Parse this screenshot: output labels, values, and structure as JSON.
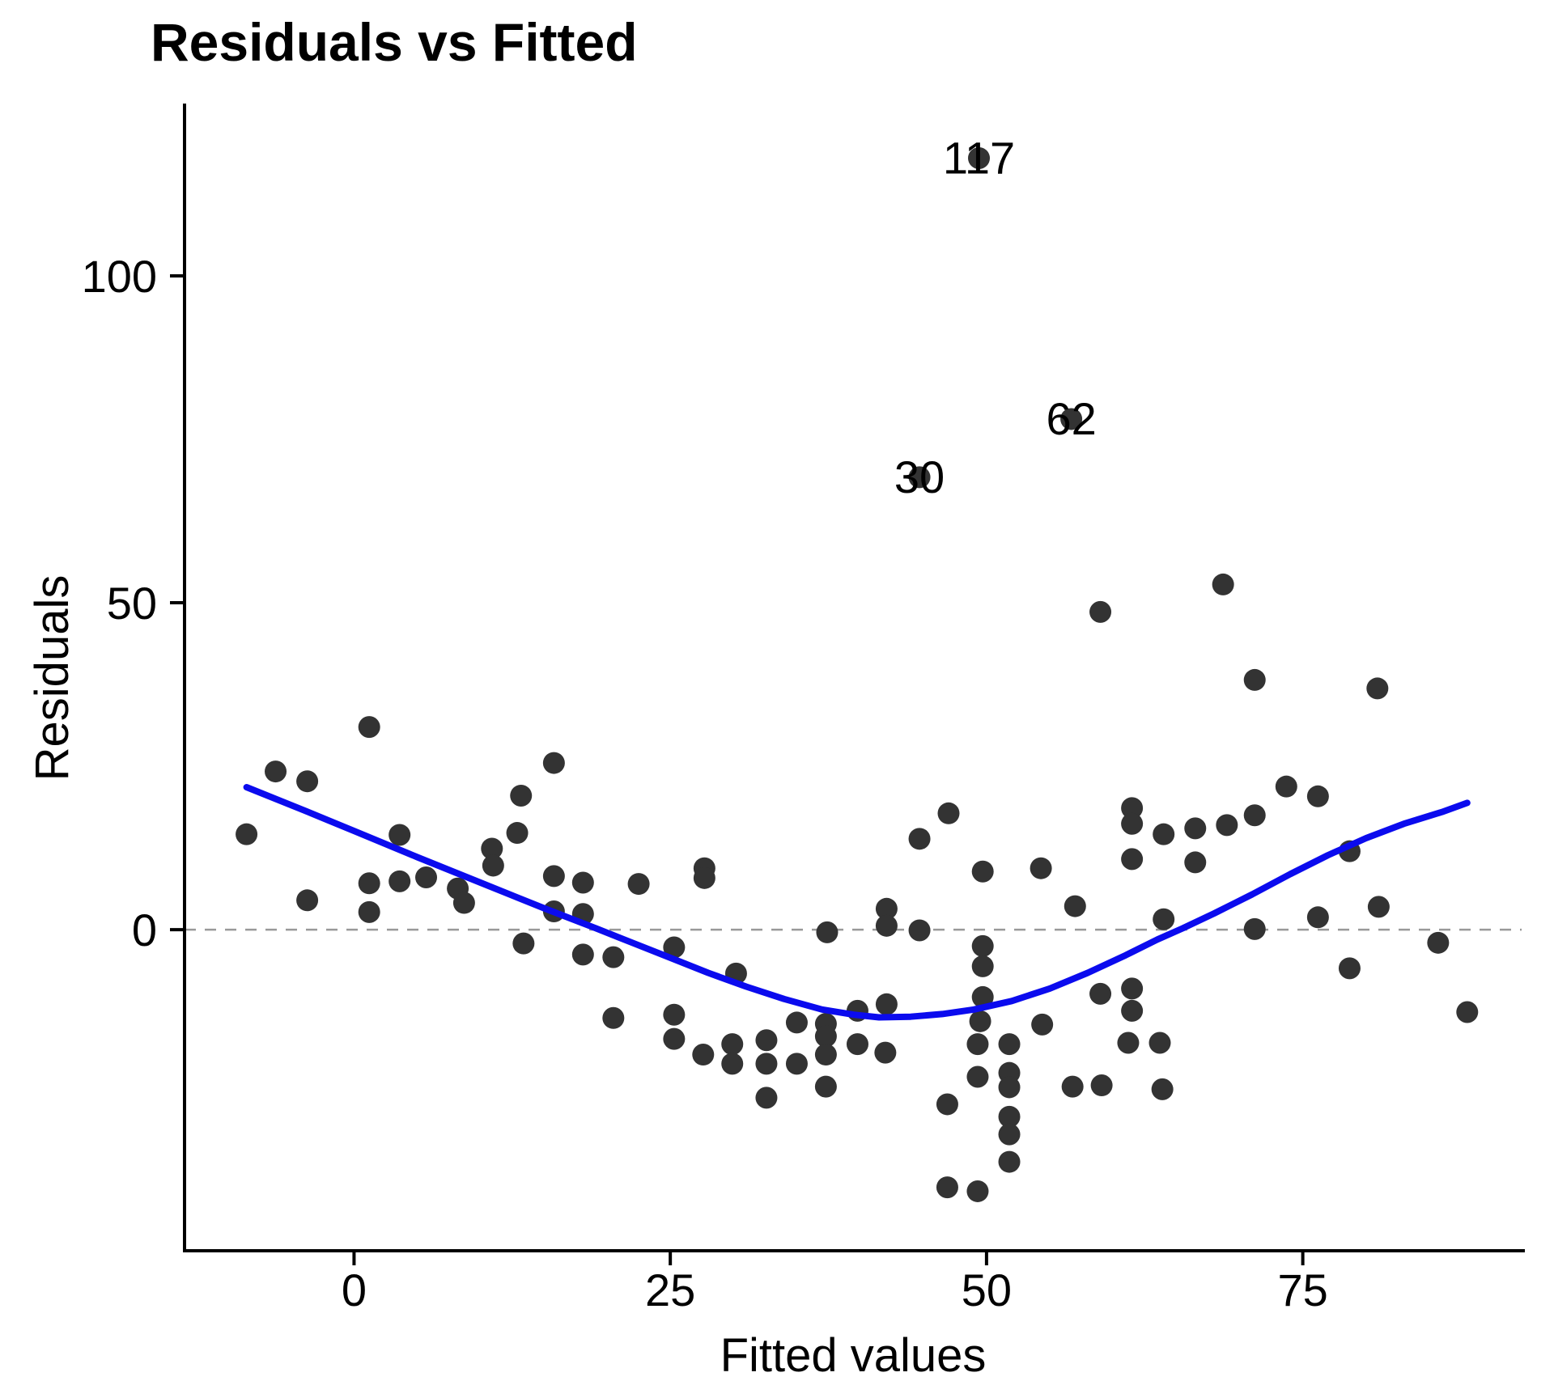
{
  "title": "Residuals vs Fitted",
  "colors": {
    "point": "#333333",
    "smooth_line": "#0b0bee",
    "zero_line": "#999999",
    "axis": "#000000",
    "text": "#000000",
    "background": "#ffffff"
  },
  "chart_data": {
    "type": "scatter",
    "title": "Residuals vs Fitted",
    "xlabel": "Fitted values",
    "ylabel": "Residuals",
    "xlim": [
      -13.4,
      92.3
    ],
    "ylim": [
      -49.1,
      126.1
    ],
    "x_ticks": [
      0,
      25,
      50,
      75
    ],
    "y_ticks": [
      0,
      50,
      100
    ],
    "grid": false,
    "zero_reference_line": 0,
    "legend": "none",
    "points": [
      [
        -8.5,
        14.6
      ],
      [
        -6.2,
        24.2
      ],
      [
        -3.7,
        22.7
      ],
      [
        -3.7,
        4.5
      ],
      [
        1.2,
        31.0
      ],
      [
        1.2,
        7.1
      ],
      [
        1.2,
        2.7
      ],
      [
        3.6,
        14.5
      ],
      [
        3.6,
        7.4
      ],
      [
        5.7,
        8.0
      ],
      [
        8.2,
        6.3
      ],
      [
        8.7,
        4.1
      ],
      [
        10.9,
        12.4
      ],
      [
        11.0,
        9.8
      ],
      [
        12.9,
        14.8
      ],
      [
        13.2,
        20.5
      ],
      [
        13.4,
        -2.1
      ],
      [
        15.8,
        25.5
      ],
      [
        15.8,
        8.2
      ],
      [
        15.8,
        2.8
      ],
      [
        18.1,
        7.2
      ],
      [
        18.1,
        2.4
      ],
      [
        18.1,
        -3.8
      ],
      [
        20.5,
        -4.2
      ],
      [
        20.5,
        -13.5
      ],
      [
        22.5,
        7.0
      ],
      [
        25.3,
        -2.7
      ],
      [
        25.3,
        -13.0
      ],
      [
        25.3,
        -16.7
      ],
      [
        27.7,
        9.4
      ],
      [
        27.7,
        7.9
      ],
      [
        27.6,
        -19.1
      ],
      [
        29.9,
        -17.5
      ],
      [
        29.9,
        -20.5
      ],
      [
        30.2,
        -6.7
      ],
      [
        32.6,
        -16.9
      ],
      [
        32.6,
        -20.5
      ],
      [
        32.6,
        -25.7
      ],
      [
        35.0,
        -14.2
      ],
      [
        35.0,
        -20.5
      ],
      [
        37.4,
        -0.4
      ],
      [
        37.3,
        -14.4
      ],
      [
        37.3,
        -16.3
      ],
      [
        37.3,
        -19.1
      ],
      [
        37.3,
        -24.0
      ],
      [
        39.8,
        -12.4
      ],
      [
        39.8,
        -17.5
      ],
      [
        42.1,
        3.2
      ],
      [
        42.1,
        0.6
      ],
      [
        42.1,
        -11.4
      ],
      [
        42.0,
        -18.8
      ],
      [
        44.7,
        69.2
      ],
      [
        44.7,
        13.9
      ],
      [
        44.7,
        -0.1
      ],
      [
        47.0,
        17.8
      ],
      [
        46.9,
        -26.7
      ],
      [
        46.9,
        -39.4
      ],
      [
        49.4,
        118.0
      ],
      [
        49.7,
        8.9
      ],
      [
        49.7,
        -2.5
      ],
      [
        49.7,
        -5.6
      ],
      [
        49.7,
        -10.3
      ],
      [
        49.5,
        -14.0
      ],
      [
        49.3,
        -17.5
      ],
      [
        49.3,
        -22.5
      ],
      [
        49.3,
        -40.0
      ],
      [
        51.8,
        -17.5
      ],
      [
        51.8,
        -21.9
      ],
      [
        51.8,
        -24.1
      ],
      [
        51.8,
        -28.6
      ],
      [
        51.8,
        -31.3
      ],
      [
        51.8,
        -35.5
      ],
      [
        54.3,
        9.4
      ],
      [
        54.4,
        -14.5
      ],
      [
        56.7,
        78.1
      ],
      [
        57.0,
        3.6
      ],
      [
        56.8,
        -24.0
      ],
      [
        59.0,
        48.6
      ],
      [
        59.0,
        -9.8
      ],
      [
        59.1,
        -23.8
      ],
      [
        61.5,
        18.6
      ],
      [
        61.5,
        16.2
      ],
      [
        61.5,
        10.8
      ],
      [
        61.5,
        -9.0
      ],
      [
        61.5,
        -12.4
      ],
      [
        61.2,
        -17.3
      ],
      [
        63.7,
        -17.3
      ],
      [
        63.9,
        -24.4
      ],
      [
        64.0,
        14.6
      ],
      [
        64.0,
        1.6
      ],
      [
        66.5,
        15.5
      ],
      [
        66.5,
        10.3
      ],
      [
        68.7,
        52.8
      ],
      [
        69.0,
        16.0
      ],
      [
        71.2,
        38.2
      ],
      [
        71.2,
        17.5
      ],
      [
        71.2,
        0.1
      ],
      [
        73.7,
        21.9
      ],
      [
        76.2,
        20.4
      ],
      [
        76.2,
        1.9
      ],
      [
        78.7,
        12.0
      ],
      [
        78.7,
        -5.9
      ],
      [
        80.9,
        36.9
      ],
      [
        81.0,
        3.5
      ],
      [
        85.7,
        -2.0
      ],
      [
        88.0,
        -12.6
      ]
    ],
    "labeled_points": [
      {
        "label": "117",
        "x": 49.4,
        "y": 118.0
      },
      {
        "label": "62",
        "x": 56.7,
        "y": 78.1
      },
      {
        "label": "30",
        "x": 44.7,
        "y": 69.2
      }
    ],
    "smooth_line": [
      [
        -8.5,
        21.8
      ],
      [
        -4,
        18.3
      ],
      [
        0,
        15.1
      ],
      [
        5,
        11.1
      ],
      [
        10,
        7.2
      ],
      [
        15,
        3.3
      ],
      [
        19,
        0.3
      ],
      [
        22,
        -2.0
      ],
      [
        25,
        -4.3
      ],
      [
        28,
        -6.6
      ],
      [
        31,
        -8.7
      ],
      [
        34,
        -10.6
      ],
      [
        37,
        -12.2
      ],
      [
        39.5,
        -13.0
      ],
      [
        41.5,
        -13.4
      ],
      [
        44,
        -13.3
      ],
      [
        46.5,
        -12.9
      ],
      [
        49,
        -12.2
      ],
      [
        52,
        -10.9
      ],
      [
        55,
        -9.0
      ],
      [
        58,
        -6.6
      ],
      [
        61,
        -3.9
      ],
      [
        63.5,
        -1.5
      ],
      [
        65.5,
        0.2
      ],
      [
        68,
        2.5
      ],
      [
        71,
        5.4
      ],
      [
        74,
        8.5
      ],
      [
        77,
        11.4
      ],
      [
        80,
        14.0
      ],
      [
        83,
        16.2
      ],
      [
        86,
        18.0
      ],
      [
        88,
        19.4
      ]
    ]
  }
}
